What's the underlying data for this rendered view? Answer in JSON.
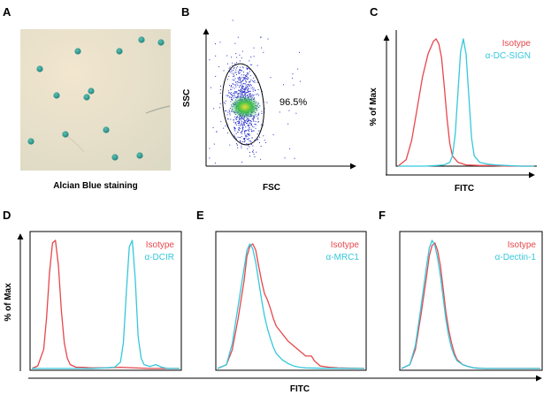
{
  "figure": {
    "panel_labels": [
      "A",
      "B",
      "C",
      "D",
      "E",
      "F"
    ],
    "staining_caption": "Alcian Blue staining",
    "shared_xlabel": "FITC"
  },
  "colors": {
    "isotype": "#e8464b",
    "antibody": "#35c8dc",
    "stain_background": "#ead9bd",
    "stain_cells": "#2a8e86"
  },
  "chart_data": [
    {
      "panel": "B",
      "type": "scatter",
      "xlabel": "FSC",
      "ylabel": "SSC",
      "gate_percent": "96.5%"
    },
    {
      "panel": "C",
      "type": "line",
      "xlabel": "FITC",
      "ylabel": "% of Max",
      "series": [
        {
          "name": "Isotype",
          "color": "#e8464b",
          "x": [
            0,
            6,
            10,
            14,
            18,
            22,
            26,
            28,
            30,
            32,
            34,
            36,
            38,
            40,
            44,
            50,
            60,
            70,
            80,
            100
          ],
          "y": [
            0,
            5,
            20,
            45,
            70,
            88,
            98,
            100,
            96,
            85,
            62,
            38,
            18,
            8,
            3,
            1,
            0.5,
            0.5,
            0,
            0
          ]
        },
        {
          "name": "α-DC-SIGN",
          "color": "#35c8dc",
          "x": [
            0,
            20,
            28,
            34,
            38,
            40,
            42,
            44,
            46,
            48,
            50,
            52,
            54,
            56,
            60,
            66,
            72,
            80,
            90,
            100
          ],
          "y": [
            0,
            0,
            0.5,
            1,
            3,
            8,
            25,
            58,
            90,
            100,
            88,
            55,
            22,
            8,
            3,
            1.5,
            1,
            0.5,
            0,
            0
          ]
        }
      ]
    },
    {
      "panel": "D",
      "type": "line",
      "ylabel": "% of Max",
      "series": [
        {
          "name": "Isotype",
          "color": "#e8464b",
          "x": [
            0,
            4,
            8,
            10,
            12,
            14,
            16,
            18,
            20,
            22,
            24,
            26,
            30,
            34,
            40,
            50,
            60,
            80,
            100
          ],
          "y": [
            0,
            2,
            15,
            40,
            75,
            98,
            100,
            80,
            45,
            20,
            8,
            3,
            1,
            1,
            0.5,
            0.5,
            1,
            0,
            0
          ]
        },
        {
          "name": "α-DCIR",
          "color": "#35c8dc",
          "x": [
            0,
            40,
            50,
            56,
            60,
            62,
            64,
            66,
            68,
            70,
            72,
            74,
            76,
            80,
            84,
            88,
            92,
            100
          ],
          "y": [
            0,
            0,
            0.5,
            1,
            5,
            20,
            60,
            95,
            100,
            70,
            25,
            8,
            3,
            1.5,
            3,
            1,
            0,
            0
          ]
        }
      ]
    },
    {
      "panel": "E",
      "type": "line",
      "series": [
        {
          "name": "Isotype",
          "color": "#e8464b",
          "x": [
            0,
            6,
            10,
            14,
            18,
            20,
            22,
            24,
            26,
            28,
            30,
            32,
            34,
            36,
            38,
            40,
            44,
            48,
            52,
            56,
            60,
            64,
            66,
            70,
            76,
            82,
            100
          ],
          "y": [
            0,
            3,
            15,
            40,
            70,
            90,
            98,
            100,
            95,
            82,
            70,
            60,
            55,
            48,
            40,
            34,
            28,
            22,
            18,
            14,
            10,
            10,
            6,
            2,
            1,
            0.5,
            0
          ]
        },
        {
          "name": "α-MRC1",
          "color": "#35c8dc",
          "x": [
            0,
            6,
            10,
            14,
            18,
            20,
            22,
            24,
            26,
            28,
            30,
            32,
            34,
            36,
            38,
            40,
            44,
            48,
            52,
            56,
            60,
            70,
            100
          ],
          "y": [
            0,
            3,
            20,
            50,
            80,
            95,
            100,
            96,
            85,
            70,
            55,
            42,
            32,
            24,
            17,
            12,
            7,
            4,
            2,
            1,
            0.5,
            0.2,
            0
          ]
        }
      ]
    },
    {
      "panel": "F",
      "type": "line",
      "series": [
        {
          "name": "Isotype",
          "color": "#e8464b",
          "x": [
            0,
            6,
            10,
            14,
            18,
            20,
            22,
            24,
            26,
            28,
            30,
            32,
            34,
            36,
            38,
            40,
            44,
            48,
            52,
            56,
            60,
            70,
            100
          ],
          "y": [
            0,
            3,
            15,
            42,
            72,
            88,
            96,
            98,
            92,
            80,
            62,
            44,
            30,
            20,
            12,
            7,
            3,
            1.5,
            0.5,
            0.2,
            0,
            0,
            0
          ]
        },
        {
          "name": "α-Dectin-1",
          "color": "#35c8dc",
          "x": [
            0,
            6,
            10,
            14,
            18,
            20,
            22,
            24,
            26,
            28,
            30,
            32,
            34,
            36,
            38,
            40,
            44,
            48,
            52,
            56,
            60,
            70,
            100
          ],
          "y": [
            0,
            3,
            18,
            48,
            80,
            94,
            100,
            96,
            86,
            72,
            55,
            38,
            25,
            16,
            10,
            6,
            3,
            1.5,
            0.5,
            0.2,
            0,
            0,
            0
          ]
        }
      ]
    }
  ]
}
